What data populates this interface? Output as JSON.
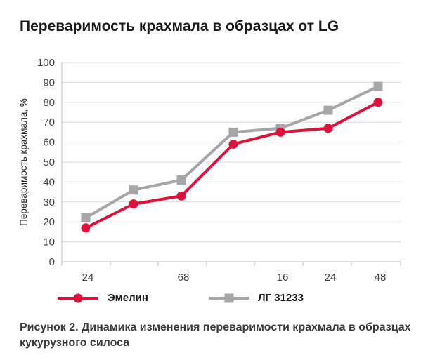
{
  "title": "Переваримость крахмала в образцах от LG",
  "caption": "Рисунок 2. Динамика изменения переваримости крахмала в образцах кукурузного силоса",
  "chart_data": {
    "type": "line",
    "title": "Переваримость крахмала в образцах от LG",
    "ylabel": "Переваримость крахмала, %",
    "xlabel": "",
    "ylim": [
      0,
      100
    ],
    "yticks": [
      0,
      10,
      20,
      30,
      40,
      50,
      60,
      70,
      80,
      90,
      100
    ],
    "categories": [
      "24",
      "",
      "68",
      "",
      "16",
      "24",
      "48"
    ],
    "grid": "horizontal",
    "legend_position": "bottom",
    "series": [
      {
        "name": "Эмелин",
        "color": "#e0103a",
        "marker": "circle",
        "values": [
          17,
          29,
          33,
          59,
          65,
          67,
          80
        ]
      },
      {
        "name": "ЛГ 31233",
        "color": "#a6a6a6",
        "marker": "square",
        "values": [
          22,
          36,
          41,
          65,
          67,
          76,
          88
        ]
      }
    ]
  }
}
